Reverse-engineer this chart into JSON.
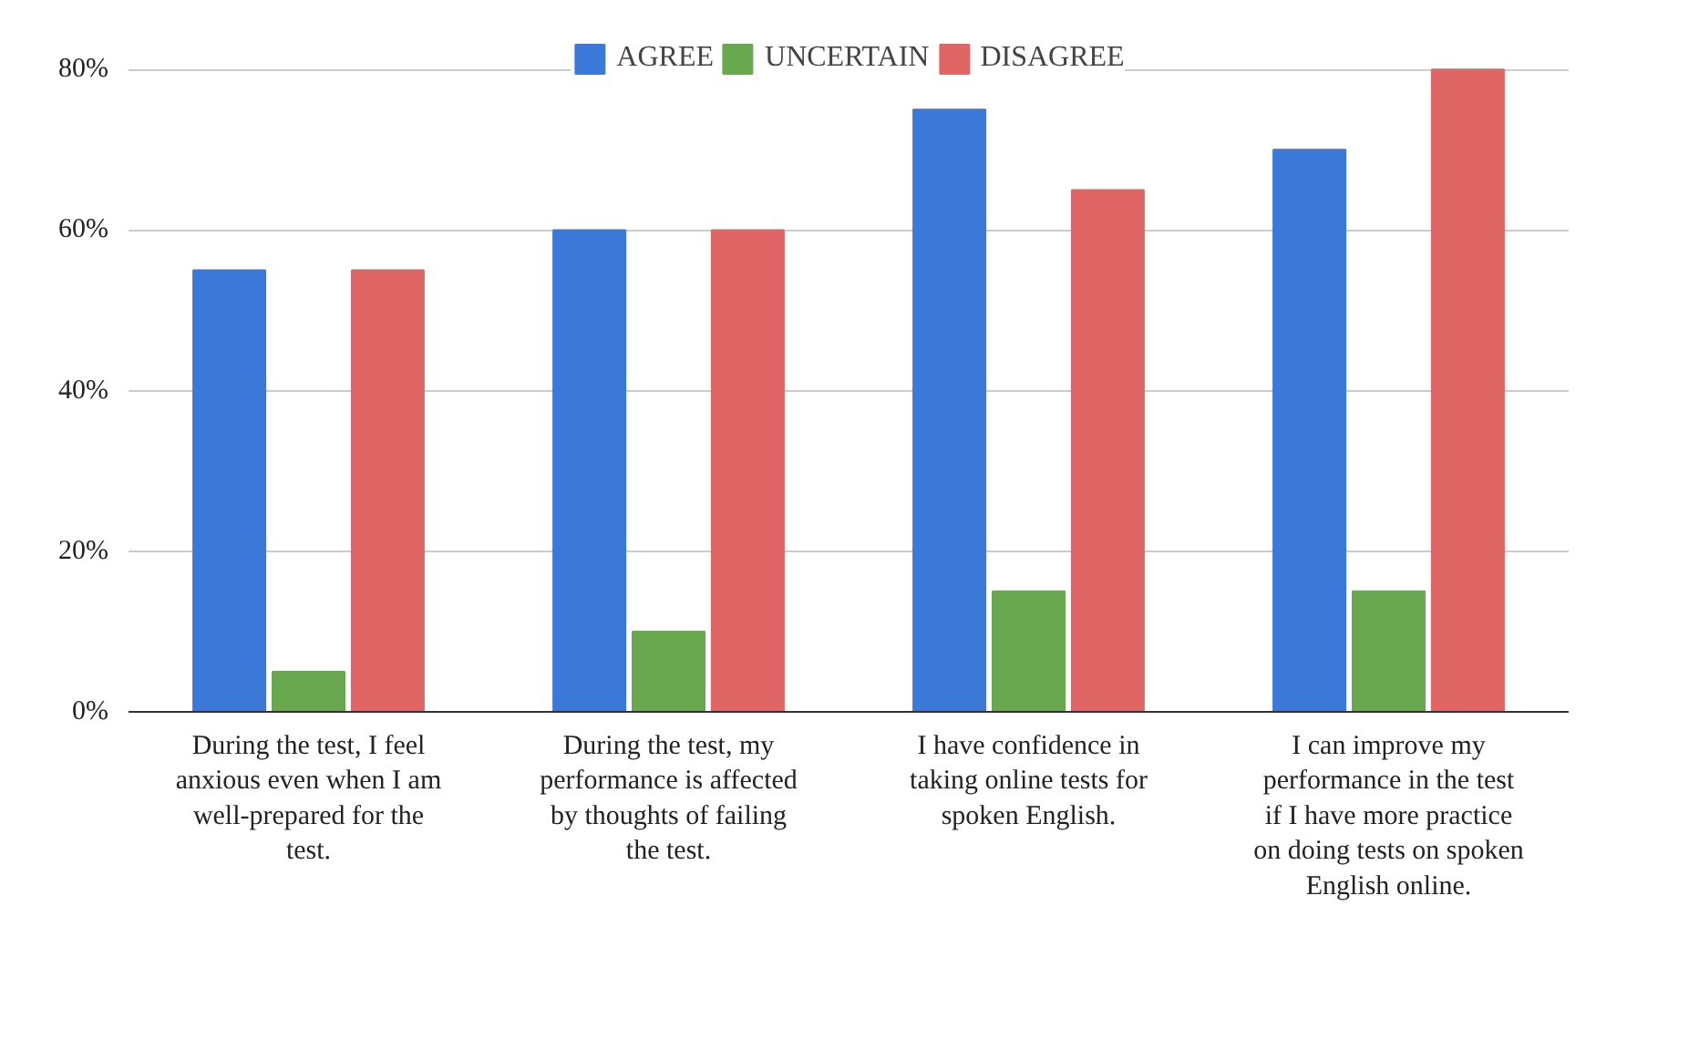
{
  "chart_data": {
    "type": "bar",
    "categories": [
      "During the test, I feel anxious even when I am well-prepared for the test.",
      "During the test, my performance is affected by thoughts of failing the test.",
      "I have confidence in taking online tests for spoken English.",
      "I can improve my performance in the test if I have more practice on doing tests on spoken English online."
    ],
    "series": [
      {
        "name": "AGREE",
        "color": "#3c78d8",
        "values": [
          55,
          60,
          75,
          70
        ]
      },
      {
        "name": "UNCERTAIN",
        "color": "#6aa84f",
        "values": [
          5,
          10,
          15,
          15
        ]
      },
      {
        "name": "DISAGREE",
        "color": "#e06666",
        "values": [
          55,
          60,
          65,
          80
        ]
      }
    ],
    "ylim": [
      0,
      84
    ],
    "yticks": [
      {
        "value": 0,
        "label": "0%"
      },
      {
        "value": 20,
        "label": "20%"
      },
      {
        "value": 40,
        "label": "40%"
      },
      {
        "value": 60,
        "label": "60%"
      },
      {
        "value": 80,
        "label": "80%"
      }
    ],
    "grid": "y",
    "legend": "top"
  }
}
